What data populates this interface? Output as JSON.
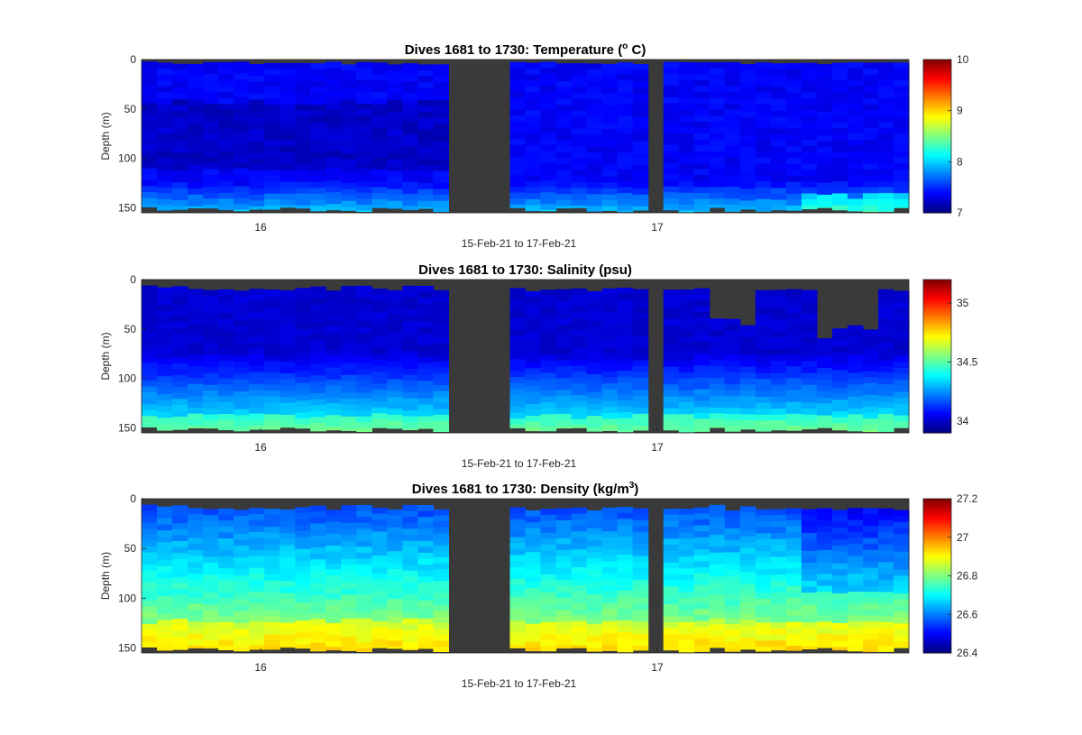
{
  "chart_data": [
    {
      "type": "heatmap",
      "title_prefix": "Dives 1681 to 1730: Temperature (",
      "title_sup": "o",
      "title_suffix": " C)",
      "xlabel": "15-Feb-21 to 17-Feb-21",
      "ylabel": "Depth (m)",
      "x_ticks": [
        "16",
        "17"
      ],
      "y_ticks": [
        0,
        50,
        100,
        150
      ],
      "ylim": [
        0,
        155
      ],
      "colorbar": {
        "colormap": "jet",
        "min": 7,
        "max": 10,
        "ticks": [
          7,
          8,
          9,
          10
        ]
      },
      "variable": "temperature",
      "missing_color": "#3a3a3a"
    },
    {
      "type": "heatmap",
      "title_prefix": "Dives 1681 to 1730: Salinity (psu)",
      "title_sup": "",
      "title_suffix": "",
      "xlabel": "15-Feb-21 to 17-Feb-21",
      "ylabel": "Depth (m)",
      "x_ticks": [
        "16",
        "17"
      ],
      "y_ticks": [
        0,
        50,
        100,
        150
      ],
      "ylim": [
        0,
        155
      ],
      "colorbar": {
        "colormap": "jet",
        "min": 33.9,
        "max": 35.2,
        "ticks": [
          34,
          34.5,
          35
        ]
      },
      "variable": "salinity",
      "missing_color": "#3a3a3a"
    },
    {
      "type": "heatmap",
      "title_prefix": "Dives 1681 to 1730: Density (kg/m",
      "title_sup": "3",
      "title_suffix": ")",
      "xlabel": "15-Feb-21 to 17-Feb-21",
      "ylabel": "Depth (m)",
      "x_ticks": [
        "16",
        "17"
      ],
      "y_ticks": [
        0,
        50,
        100,
        150
      ],
      "ylim": [
        0,
        155
      ],
      "colorbar": {
        "colormap": "jet",
        "min": 26.4,
        "max": 27.2,
        "ticks": [
          26.4,
          26.6,
          26.8,
          27,
          27.2
        ]
      },
      "variable": "density",
      "missing_color": "#3a3a3a"
    }
  ]
}
